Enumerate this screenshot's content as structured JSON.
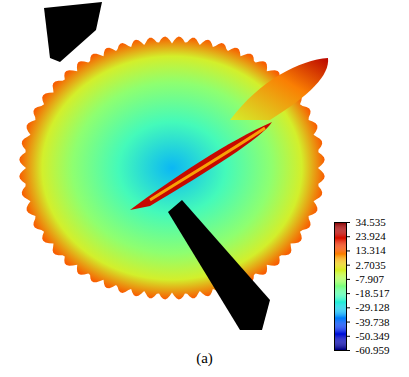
{
  "chart_data": {
    "type": "surface",
    "caption": "(a)",
    "colorbar": {
      "range": [
        -60.959,
        34.535
      ],
      "ticks": [
        34.535,
        23.924,
        13.314,
        2.7035,
        -7.907,
        -18.517,
        -29.128,
        -39.738,
        -50.349,
        -60.959
      ]
    }
  }
}
